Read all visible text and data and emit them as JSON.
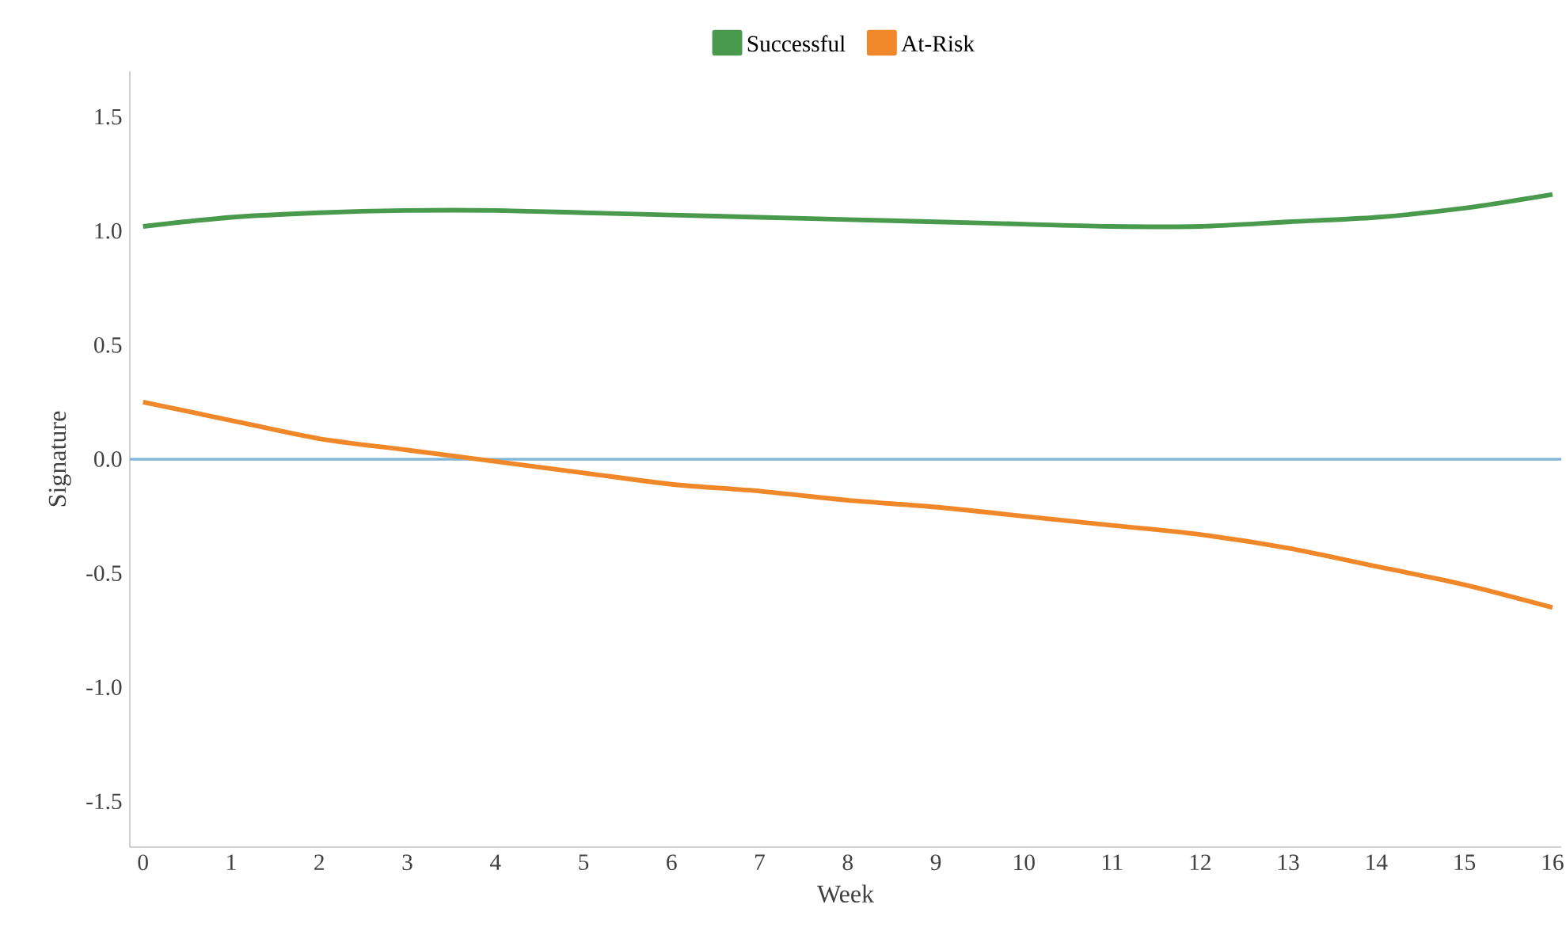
{
  "chart_data": {
    "type": "line",
    "xlabel": "Week",
    "ylabel": "Signature",
    "x": [
      0,
      1,
      2,
      3,
      4,
      5,
      6,
      7,
      8,
      9,
      10,
      11,
      12,
      13,
      14,
      15,
      16
    ],
    "series": [
      {
        "name": "Successful",
        "color": "#4a9a4e",
        "values": [
          1.02,
          1.06,
          1.08,
          1.09,
          1.09,
          1.08,
          1.07,
          1.06,
          1.05,
          1.04,
          1.03,
          1.02,
          1.02,
          1.04,
          1.06,
          1.1,
          1.16
        ]
      },
      {
        "name": "At-Risk",
        "color": "#f0882a",
        "values": [
          0.25,
          0.17,
          0.09,
          0.04,
          -0.01,
          -0.06,
          -0.11,
          -0.14,
          -0.18,
          -0.21,
          -0.25,
          -0.29,
          -0.33,
          -0.39,
          -0.47,
          -0.55,
          -0.65
        ]
      }
    ],
    "xlim": [
      -0.15,
      16.1
    ],
    "xticks": [
      0,
      1,
      2,
      3,
      4,
      5,
      6,
      7,
      8,
      9,
      10,
      11,
      12,
      13,
      14,
      15,
      16
    ],
    "ylim": [
      -1.7,
      1.7
    ],
    "yticks": [
      {
        "value": -1.5,
        "label": "-1.5"
      },
      {
        "value": -1.0,
        "label": "-1.0"
      },
      {
        "value": -0.5,
        "label": "-0.5"
      },
      {
        "value": 0,
        "label": "0.0"
      },
      {
        "value": 0.5,
        "label": "0.5"
      },
      {
        "value": 1.0,
        "label": "1.0"
      },
      {
        "value": 1.5,
        "label": "1.5"
      }
    ],
    "ref_lines": [
      {
        "axis": "y",
        "value": 0,
        "color": "#7fb5d8"
      }
    ],
    "grid": false,
    "legend": "top",
    "marker": "none",
    "line_style": "solid"
  }
}
